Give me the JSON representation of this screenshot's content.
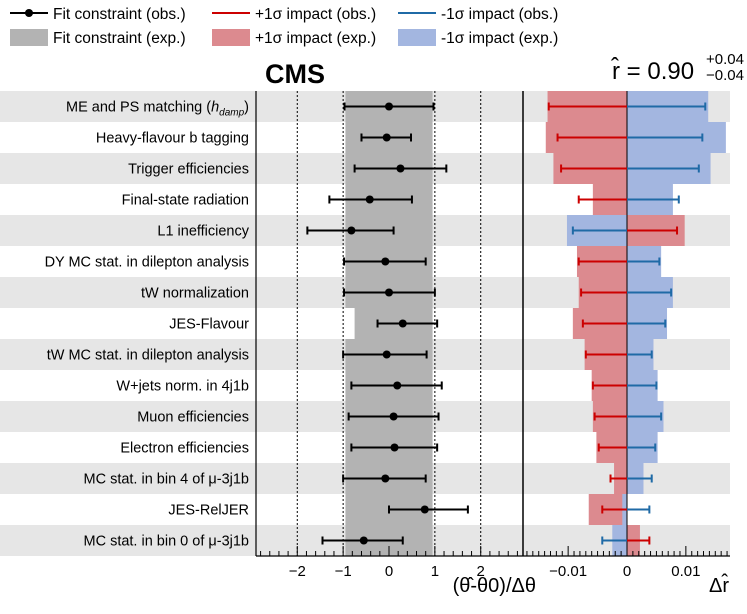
{
  "chart_data": {
    "type": "impact",
    "experiment": "CMS",
    "result": {
      "symbol": "r̂",
      "equals": " = ",
      "value": "0.90",
      "err_up": "+0.04",
      "err_down": "−0.04"
    },
    "legend": [
      {
        "key": "fit_obs",
        "label": "Fit constraint (obs.)"
      },
      {
        "key": "fit_exp",
        "label": "Fit constraint (exp.)"
      },
      {
        "key": "up_obs",
        "label": "+1σ impact (obs.)"
      },
      {
        "key": "up_exp",
        "label": "+1σ impact (exp.)"
      },
      {
        "key": "down_obs",
        "label": "-1σ impact (obs.)"
      },
      {
        "key": "down_exp",
        "label": "-1σ impact (exp.)"
      }
    ],
    "pull_axis": {
      "range": [
        -2.9,
        2.9
      ],
      "ticks": [
        -2,
        -1,
        0,
        1,
        2
      ],
      "tick_labels": [
        "−2",
        "−1",
        "0",
        "1",
        "2"
      ],
      "xlabel": "(θ̂-θ0)/Δθ",
      "dotted_lines": [
        -2,
        -1,
        1,
        2
      ]
    },
    "impact_axis": {
      "range": [
        -0.0175,
        0.0175
      ],
      "ticks": [
        -0.01,
        0,
        0.01
      ],
      "tick_labels": [
        "−0.01",
        "0",
        "0.01"
      ],
      "xlabel": "Δr̂"
    },
    "colors": {
      "fit_exp": "#b3b3b3",
      "up_obs": "#cc0000",
      "up_exp": "#dc8a8f",
      "down_obs": "#1f6aa6",
      "down_exp": "#a3b6e0",
      "band": "#e6e6e6"
    },
    "nuisances": [
      {
        "label": "ME and PS matching (",
        "label_it": "h",
        "label_sub": "damp",
        "label_tail": ")",
        "pull": 0.0,
        "pull_lo": -0.97,
        "pull_hi": 0.97,
        "exp_lo": -0.95,
        "exp_hi": 0.95,
        "up_obs": -0.0133,
        "down_obs": 0.0133,
        "up_exp": -0.0135,
        "down_exp": 0.0138
      },
      {
        "label": "Heavy-flavour b tagging",
        "pull": -0.05,
        "pull_lo": -0.6,
        "pull_hi": 0.48,
        "exp_lo": -0.95,
        "exp_hi": 0.95,
        "up_obs": -0.0118,
        "down_obs": 0.0128,
        "up_exp": -0.0138,
        "down_exp": 0.0168
      },
      {
        "label": "Trigger efficiencies",
        "pull": 0.25,
        "pull_lo": -0.75,
        "pull_hi": 1.25,
        "exp_lo": -0.95,
        "exp_hi": 0.95,
        "up_obs": -0.0112,
        "down_obs": 0.0122,
        "up_exp": -0.0125,
        "down_exp": 0.0142
      },
      {
        "label": "Final-state radiation",
        "pull": -0.42,
        "pull_lo": -1.3,
        "pull_hi": 0.5,
        "exp_lo": -0.95,
        "exp_hi": 0.95,
        "up_obs": -0.0082,
        "down_obs": 0.0088,
        "up_exp": -0.0058,
        "down_exp": 0.0078
      },
      {
        "label": "L1 inefficiency",
        "pull": -0.82,
        "pull_lo": -1.78,
        "pull_hi": 0.1,
        "exp_lo": -0.95,
        "exp_hi": 0.95,
        "up_obs": 0.0085,
        "down_obs": -0.0092,
        "up_exp": 0.0098,
        "down_exp": -0.0102
      },
      {
        "label": "DY MC stat. in dilepton analysis",
        "pull": -0.08,
        "pull_lo": -0.98,
        "pull_hi": 0.8,
        "exp_lo": -0.95,
        "exp_hi": 0.95,
        "up_obs": -0.0082,
        "down_obs": 0.0055,
        "up_exp": -0.0085,
        "down_exp": 0.0058
      },
      {
        "label": "tW normalization",
        "pull": 0.0,
        "pull_lo": -0.98,
        "pull_hi": 1.0,
        "exp_lo": -0.95,
        "exp_hi": 0.95,
        "up_obs": -0.0078,
        "down_obs": 0.0075,
        "up_exp": -0.0082,
        "down_exp": 0.0078
      },
      {
        "label": "JES-Flavour",
        "pull": 0.3,
        "pull_lo": -0.25,
        "pull_hi": 1.05,
        "exp_lo": -0.75,
        "exp_hi": 0.95,
        "up_obs": -0.0075,
        "down_obs": 0.0065,
        "up_exp": -0.0092,
        "down_exp": 0.0068
      },
      {
        "label": "tW MC stat. in dilepton analysis",
        "pull": -0.05,
        "pull_lo": -1.0,
        "pull_hi": 0.82,
        "exp_lo": -0.95,
        "exp_hi": 0.95,
        "up_obs": -0.007,
        "down_obs": 0.0042,
        "up_exp": -0.0072,
        "down_exp": 0.0045
      },
      {
        "label": "W+jets norm. in 4j1b",
        "pull": 0.18,
        "pull_lo": -0.82,
        "pull_hi": 1.15,
        "exp_lo": -0.95,
        "exp_hi": 0.95,
        "up_obs": -0.0058,
        "down_obs": 0.005,
        "up_exp": -0.006,
        "down_exp": 0.0052
      },
      {
        "label": "Muon efficiencies",
        "pull": 0.1,
        "pull_lo": -0.88,
        "pull_hi": 1.08,
        "exp_lo": -0.95,
        "exp_hi": 0.95,
        "up_obs": -0.0055,
        "down_obs": 0.0058,
        "up_exp": -0.0058,
        "down_exp": 0.0062
      },
      {
        "label": "Electron efficiencies",
        "pull": 0.12,
        "pull_lo": -0.82,
        "pull_hi": 1.05,
        "exp_lo": -0.95,
        "exp_hi": 0.95,
        "up_obs": -0.0048,
        "down_obs": 0.0048,
        "up_exp": -0.0052,
        "down_exp": 0.0052
      },
      {
        "label": "MC stat. in bin 4 of μ-3j1b",
        "pull": -0.08,
        "pull_lo": -1.0,
        "pull_hi": 0.8,
        "exp_lo": -0.95,
        "exp_hi": 0.95,
        "up_obs": -0.0028,
        "down_obs": 0.0042,
        "up_exp": -0.0022,
        "down_exp": 0.0028
      },
      {
        "label": "JES-RelJER",
        "pull": 0.78,
        "pull_lo": 0.0,
        "pull_hi": 1.72,
        "exp_lo": -0.95,
        "exp_hi": 0.95,
        "up_obs": -0.0042,
        "down_obs": 0.0038,
        "up_exp": -0.0065,
        "down_exp": -0.0008
      },
      {
        "label": "MC stat. in bin 0 of μ-3j1b",
        "pull": -0.55,
        "pull_lo": -1.45,
        "pull_hi": 0.3,
        "exp_lo": -0.95,
        "exp_hi": 0.95,
        "up_obs": 0.0038,
        "down_obs": -0.0042,
        "up_exp": 0.0022,
        "down_exp": -0.0025
      }
    ]
  }
}
